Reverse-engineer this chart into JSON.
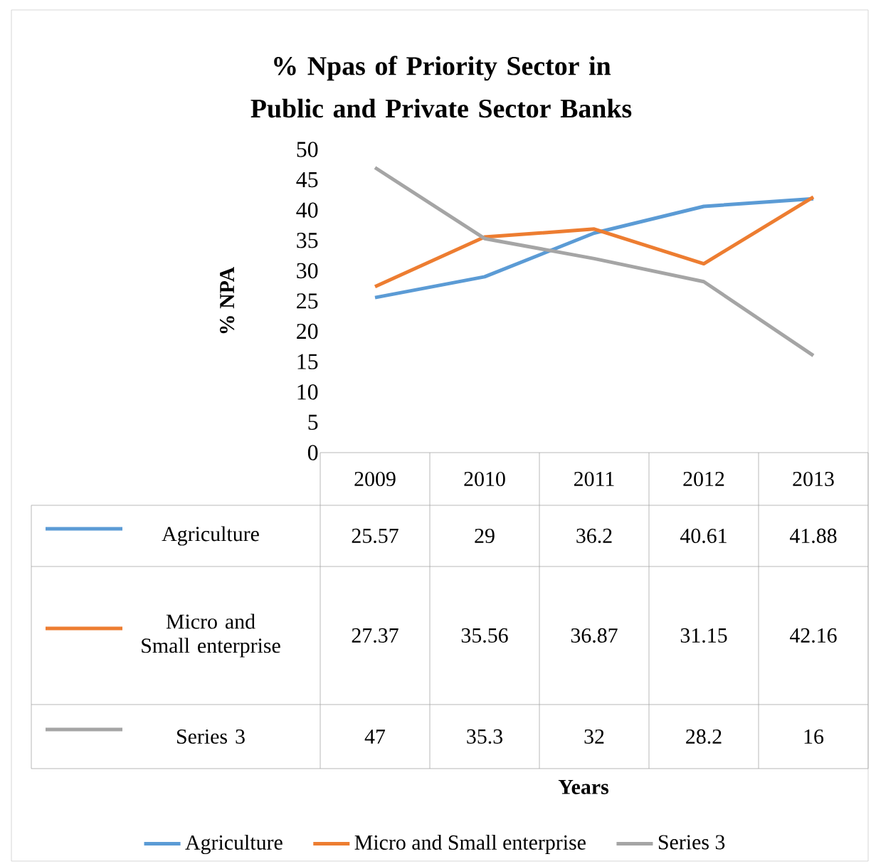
{
  "chart_data": {
    "type": "line",
    "title": "% Npas of Priority Sector in Public and Private Sector Banks",
    "annotations": [
      "Years"
    ],
    "ylabel": "% NPA",
    "categories": [
      "2009",
      "2010",
      "2011",
      "2012",
      "2013"
    ],
    "series": [
      {
        "name": "Agriculture",
        "color": "#5b9bd5",
        "values": [
          25.57,
          29,
          36.2,
          40.61,
          41.88
        ]
      },
      {
        "name": "Micro and Small enterprise",
        "color": "#ed7d31",
        "values": [
          27.37,
          35.56,
          36.87,
          31.15,
          42.16
        ]
      },
      {
        "name": "Series 3",
        "color": "#a5a5a5",
        "values": [
          47,
          35.3,
          32,
          28.2,
          16
        ]
      }
    ],
    "ylim": [
      0,
      50
    ],
    "yticks": [
      0,
      5,
      10,
      15,
      20,
      25,
      30,
      35,
      40,
      45,
      50
    ],
    "data_labels": true,
    "legend": "bottom",
    "marker": "none",
    "line_style": "solid"
  }
}
